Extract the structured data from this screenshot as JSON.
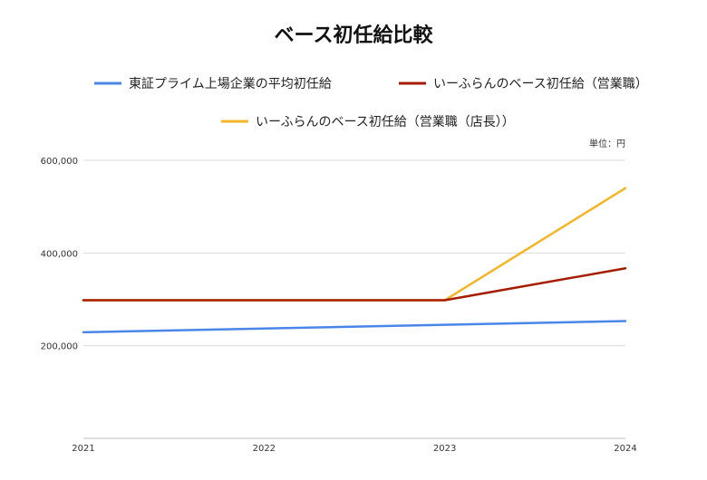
{
  "chart_data": {
    "type": "line",
    "title": "ベース初任給比較",
    "unit_label": "単位：円",
    "x": [
      "2021",
      "2022",
      "2023",
      "2024"
    ],
    "ylim": [
      0,
      600000
    ],
    "yticks": [
      {
        "value": 200000,
        "label": "200,000"
      },
      {
        "value": 400000,
        "label": "400,000"
      },
      {
        "value": 600000,
        "label": "600,000"
      }
    ],
    "grid": true,
    "legend_position": "top",
    "series": [
      {
        "name": "東証プライム上場企業の平均初任給",
        "color": "#4a86e8",
        "values": [
          229000,
          237000,
          245000,
          253000
        ]
      },
      {
        "name": "いーふらんのベース初任給（営業職）",
        "color": "#a61c00",
        "values": [
          298000,
          298000,
          298000,
          367000
        ]
      },
      {
        "name": "いーふらんのベース初任給（営業職（店長））",
        "color": "#f6b526",
        "values": [
          298000,
          298000,
          298000,
          540000
        ]
      }
    ]
  }
}
